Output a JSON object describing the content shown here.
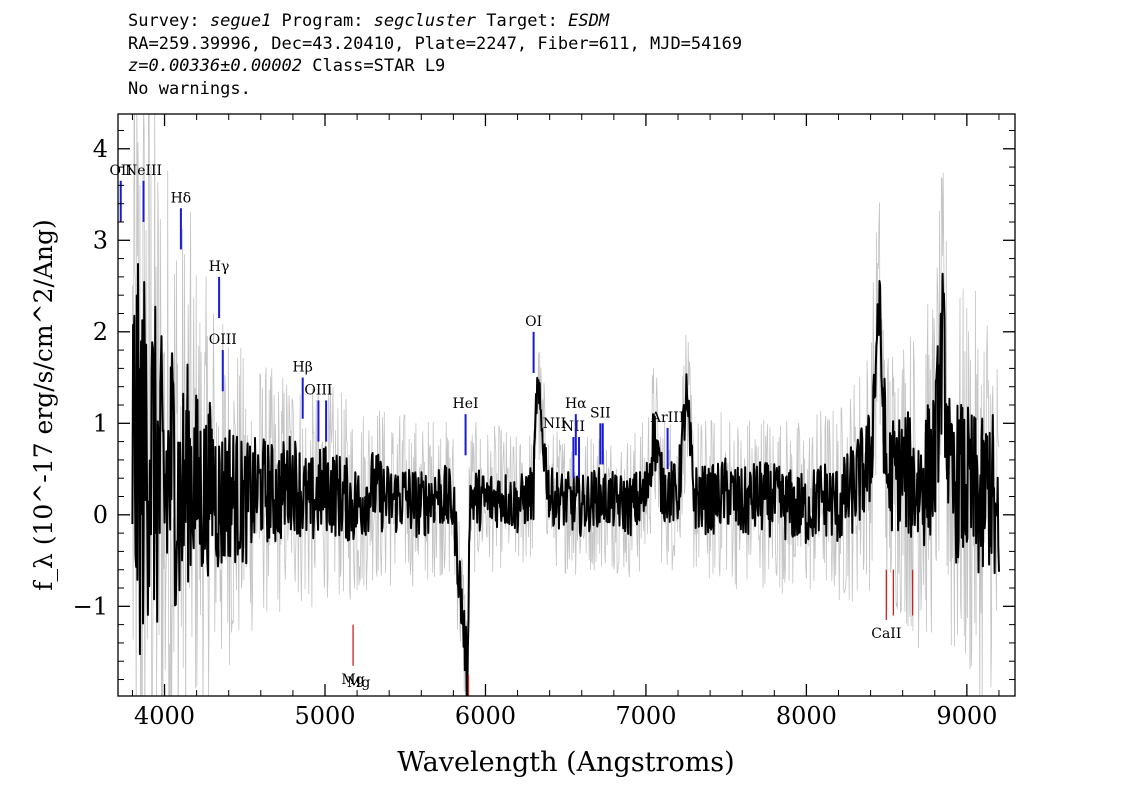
{
  "header": {
    "line1": {
      "survey_label": "Survey: ",
      "survey": "segue1",
      "program_label": " Program: ",
      "program": "segcluster",
      "target_label": " Target: ",
      "target": "ESDM"
    },
    "line2": "RA=259.39996, Dec=43.20410, Plate=2247, Fiber=611, MJD=54169",
    "line3": {
      "redshift": "z=0.00336±0.00002",
      "class": " Class=STAR L9"
    },
    "line4": "No warnings."
  },
  "colors": {
    "flux": "#000000",
    "error": "#c4c4c4",
    "emission_line": "#1a1ad2",
    "absorption_line": "#cc2222",
    "axes": "#000000"
  },
  "chart_data": {
    "type": "line",
    "title": "",
    "xlabel": "Wavelength (Angstroms)",
    "ylabel": "f_λ (10^-17 erg/s/cm^2/Ang)",
    "xlim": [
      3710,
      9300
    ],
    "ylim": [
      -1.98,
      4.38
    ],
    "x_ticks": [
      4000,
      5000,
      6000,
      7000,
      8000,
      9000
    ],
    "y_ticks": [
      -1,
      0,
      1,
      2,
      3,
      4
    ],
    "grid": false,
    "series": [
      {
        "role": "flux",
        "x": [
          3800,
          3850,
          3900,
          3950,
          4000,
          4050,
          4100,
          4150,
          4200,
          4250,
          4300,
          4350,
          4400,
          4450,
          4500,
          4600,
          4700,
          4800,
          4900,
          5000,
          5100,
          5200,
          5300,
          5400,
          5500,
          5600,
          5700,
          5800,
          5890,
          5900,
          6000,
          6100,
          6200,
          6300,
          6320,
          6400,
          6500,
          6600,
          6700,
          6800,
          6900,
          7000,
          7050,
          7100,
          7200,
          7250,
          7300,
          7400,
          7500,
          7600,
          7700,
          7800,
          7900,
          8000,
          8100,
          8200,
          8300,
          8400,
          8450,
          8500,
          8600,
          8700,
          8800,
          8850,
          8900,
          8950,
          9000,
          9050,
          9100,
          9150,
          9200
        ],
        "y": [
          0.8,
          0.5,
          0.9,
          0.4,
          0.2,
          0.6,
          0.1,
          0.5,
          0.3,
          0.2,
          0.4,
          0.1,
          0.3,
          0.2,
          0.1,
          0.3,
          0.2,
          0.4,
          0.1,
          0.3,
          0.2,
          0.1,
          0.3,
          0.15,
          0.2,
          0.1,
          0.25,
          0.1,
          -1.8,
          0.2,
          0.15,
          0.2,
          0.1,
          0.25,
          1.4,
          0.2,
          0.15,
          0.1,
          0.2,
          0.15,
          0.1,
          0.2,
          0.9,
          0.3,
          0.2,
          1.3,
          0.2,
          0.15,
          0.25,
          0.1,
          0.2,
          0.15,
          0.1,
          0.05,
          0.2,
          0.1,
          0.3,
          0.6,
          2.3,
          0.4,
          0.5,
          0.3,
          0.6,
          1.9,
          0.2,
          0.4,
          0.3,
          0.2,
          0.1,
          0.4,
          -0.6
        ]
      },
      {
        "role": "error",
        "x": [
          3800,
          3900,
          4000,
          4100,
          4200,
          4300,
          4400,
          4500,
          4600,
          4800,
          5000,
          5200,
          5400,
          5600,
          5800,
          6000,
          6200,
          6400,
          6600,
          6800,
          7000,
          7200,
          7400,
          7600,
          7800,
          8000,
          8200,
          8400,
          8600,
          8800,
          9000,
          9200
        ],
        "y": [
          5.0,
          4.5,
          3.6,
          3.0,
          2.4,
          2.0,
          1.8,
          1.5,
          1.3,
          1.2,
          1.1,
          1.0,
          0.9,
          0.85,
          0.8,
          0.75,
          0.7,
          0.7,
          0.75,
          0.7,
          0.8,
          0.8,
          0.85,
          0.9,
          0.9,
          0.9,
          1.0,
          1.3,
          1.5,
          1.8,
          2.0,
          2.2
        ]
      }
    ],
    "line_markers": [
      {
        "label": "OII",
        "x": 3727,
        "y_top": 3.65,
        "y_bottom": 3.2,
        "kind": "emission"
      },
      {
        "label": "NeIII",
        "x": 3869,
        "y_top": 3.65,
        "y_bottom": 3.2,
        "kind": "emission"
      },
      {
        "label": "Hδ",
        "x": 4102,
        "y_top": 3.35,
        "y_bottom": 2.9,
        "kind": "emission"
      },
      {
        "label": "Hγ",
        "x": 4340,
        "y_top": 2.6,
        "y_bottom": 2.15,
        "kind": "emission"
      },
      {
        "label": "OIII",
        "x": 4363,
        "y_top": 1.8,
        "y_bottom": 1.35,
        "kind": "emission"
      },
      {
        "label": "Hβ",
        "x": 4861,
        "y_top": 1.5,
        "y_bottom": 1.05,
        "kind": "emission"
      },
      {
        "label": "OIII",
        "x": 4959,
        "y_top": 1.25,
        "y_bottom": 0.8,
        "kind": "emission"
      },
      {
        "label": "",
        "x": 5007,
        "y_top": 1.25,
        "y_bottom": 0.8,
        "kind": "emission"
      },
      {
        "label": "HeI",
        "x": 5876,
        "y_top": 1.1,
        "y_bottom": 0.65,
        "kind": "emission"
      },
      {
        "label": "OI",
        "x": 6300,
        "y_top": 2.0,
        "y_bottom": 1.55,
        "kind": "emission"
      },
      {
        "label": "NII",
        "x": 6548,
        "y_top": 0.85,
        "y_bottom": 0.4,
        "kind": "emission"
      },
      {
        "label": "Hα",
        "x": 6563,
        "y_top": 1.1,
        "y_bottom": 0.65,
        "kind": "emission"
      },
      {
        "label": "",
        "x": 6583,
        "y_top": 0.85,
        "y_bottom": 0.4,
        "kind": "emission"
      },
      {
        "label": "SII",
        "x": 6716,
        "y_top": 1.0,
        "y_bottom": 0.55,
        "kind": "emission"
      },
      {
        "label": "",
        "x": 6731,
        "y_top": 1.0,
        "y_bottom": 0.55,
        "kind": "emission"
      },
      {
        "label": "ArIII",
        "x": 7135,
        "y_top": 0.95,
        "y_bottom": 0.5,
        "kind": "emission"
      },
      {
        "label": "Mg",
        "x": 5175,
        "y_top": -1.2,
        "y_bottom": -1.65,
        "kind": "absorption"
      },
      {
        "label": "",
        "x": 5894,
        "y_top": -1.75,
        "y_bottom": -2.2,
        "kind": "absorption"
      },
      {
        "label": "CaII",
        "x": 8498,
        "y_top": -0.6,
        "y_bottom": -1.15,
        "kind": "absorption"
      },
      {
        "label": "",
        "x": 8542,
        "y_top": -0.6,
        "y_bottom": -1.1,
        "kind": "absorption"
      },
      {
        "label": "",
        "x": 8662,
        "y_top": -0.6,
        "y_bottom": -1.1,
        "kind": "absorption"
      }
    ],
    "label_annotations": [
      {
        "text": "NII",
        "x": 6430,
        "y": 0.95,
        "anchor": "middle"
      },
      {
        "text": "Mg",
        "x": 5210,
        "y": -1.88,
        "anchor": "middle"
      }
    ]
  }
}
